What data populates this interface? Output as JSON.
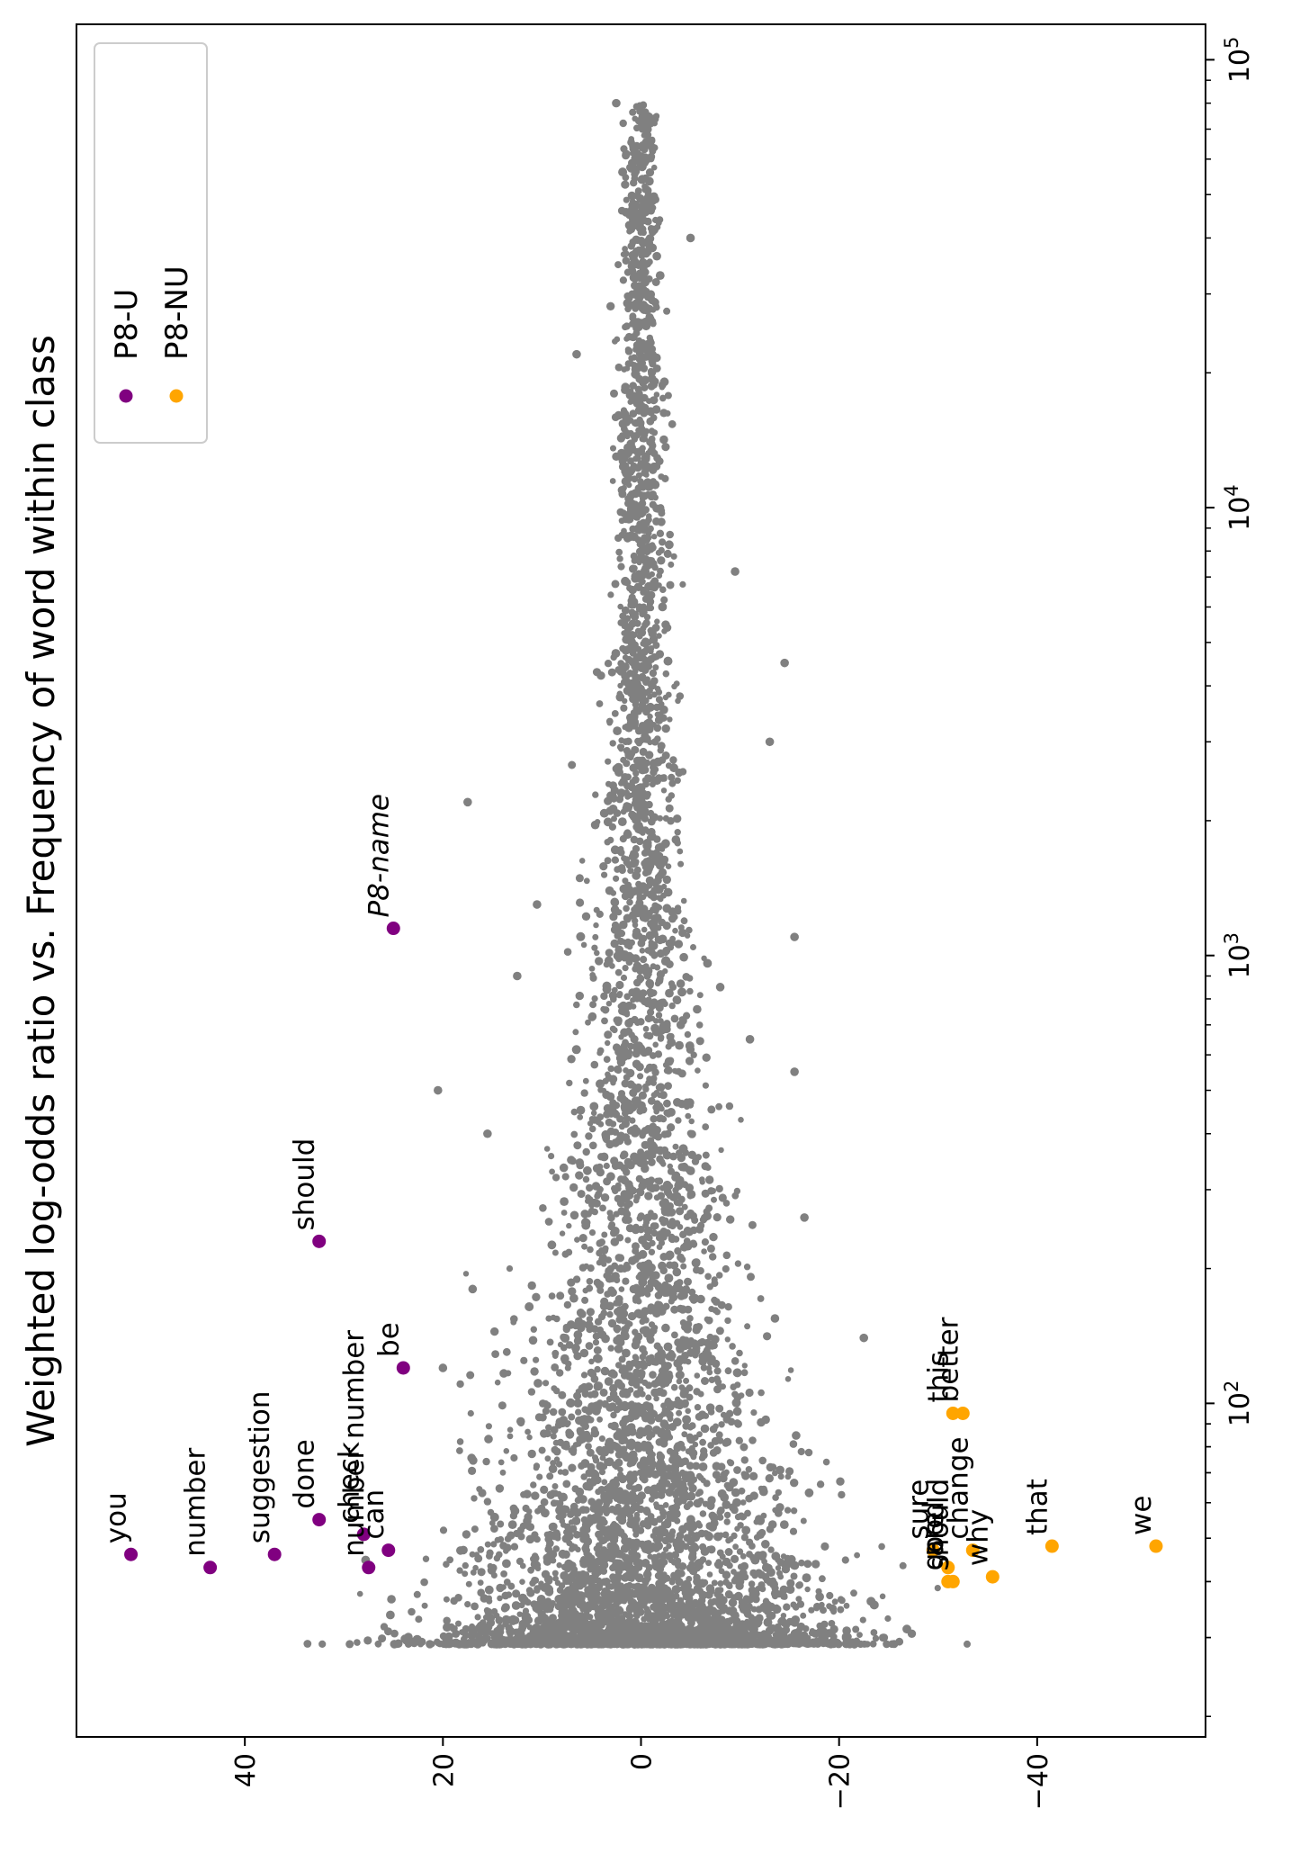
{
  "chart_data": {
    "type": "scatter",
    "title": "Weighted log-odds ratio vs. Frequency of word within class",
    "orientation": "rotated-90-ccw",
    "x_scale": "log",
    "xlim": [
      18,
      120000
    ],
    "ylim": [
      -57,
      57
    ],
    "x_ticks": [
      {
        "value": 100,
        "label": "10^2",
        "base": "10",
        "exp": "2"
      },
      {
        "value": 1000,
        "label": "10^3",
        "base": "10",
        "exp": "3"
      },
      {
        "value": 10000,
        "label": "10^4",
        "base": "10",
        "exp": "4"
      },
      {
        "value": 100000,
        "label": "10^5",
        "base": "10",
        "exp": "5"
      }
    ],
    "y_ticks": [
      {
        "value": 40,
        "label": "40"
      },
      {
        "value": 20,
        "label": "20"
      },
      {
        "value": 0,
        "label": "0"
      },
      {
        "value": -20,
        "label": "−20"
      },
      {
        "value": -40,
        "label": "−40"
      }
    ],
    "grid": false,
    "legend_position": "top-right",
    "legend": [
      {
        "name": "P8-U",
        "color": "#800080"
      },
      {
        "name": "P8-NU",
        "color": "#ffa500"
      }
    ],
    "background_points": {
      "color": "#808080",
      "description_count": 6000,
      "x_range": [
        29,
        80000
      ]
    },
    "highlighted": [
      {
        "word": "you",
        "x": 46,
        "y": 51.5,
        "series": "P8-U",
        "italic": false
      },
      {
        "word": "number",
        "x": 43,
        "y": 43.5,
        "series": "P8-U",
        "italic": false
      },
      {
        "word": "suggestion",
        "x": 46,
        "y": 37,
        "series": "P8-U",
        "italic": false
      },
      {
        "word": "done",
        "x": 55,
        "y": 32.5,
        "series": "P8-U",
        "italic": false
      },
      {
        "word": "check",
        "x": 51,
        "y": 28,
        "series": "P8-U",
        "italic": false
      },
      {
        "word": "can",
        "x": 47,
        "y": 25.5,
        "series": "P8-U",
        "italic": false
      },
      {
        "word": "number number",
        "x": 43,
        "y": 27.5,
        "series": "P8-U",
        "italic": false
      },
      {
        "word": "be",
        "x": 120,
        "y": 24,
        "series": "P8-U",
        "italic": false
      },
      {
        "word": "should",
        "x": 230,
        "y": 32.5,
        "series": "P8-U",
        "italic": false
      },
      {
        "word": "P8-name",
        "x": 1150,
        "y": 25,
        "series": "P8-U",
        "italic": true
      },
      {
        "word": "sure",
        "x": 47,
        "y": -29.5,
        "series": "P8-NU",
        "italic": false
      },
      {
        "word": "are",
        "x": 43,
        "y": -31,
        "series": "P8-NU",
        "italic": false
      },
      {
        "word": "good",
        "x": 40,
        "y": -31,
        "series": "P8-NU",
        "italic": false
      },
      {
        "word": "should",
        "x": 40,
        "y": -31.5,
        "series": "P8-NU",
        "italic": false
      },
      {
        "word": "change",
        "x": 47,
        "y": -33.5,
        "series": "P8-NU",
        "italic": false
      },
      {
        "word": "why",
        "x": 41,
        "y": -35.5,
        "series": "P8-NU",
        "italic": false
      },
      {
        "word": "this",
        "x": 95,
        "y": -31.5,
        "series": "P8-NU",
        "italic": false
      },
      {
        "word": "better",
        "x": 95,
        "y": -32.5,
        "series": "P8-NU",
        "italic": false
      },
      {
        "word": "that",
        "x": 48,
        "y": -41.5,
        "series": "P8-NU",
        "italic": false
      },
      {
        "word": "we",
        "x": 48,
        "y": -52,
        "series": "P8-NU",
        "italic": false
      }
    ]
  }
}
